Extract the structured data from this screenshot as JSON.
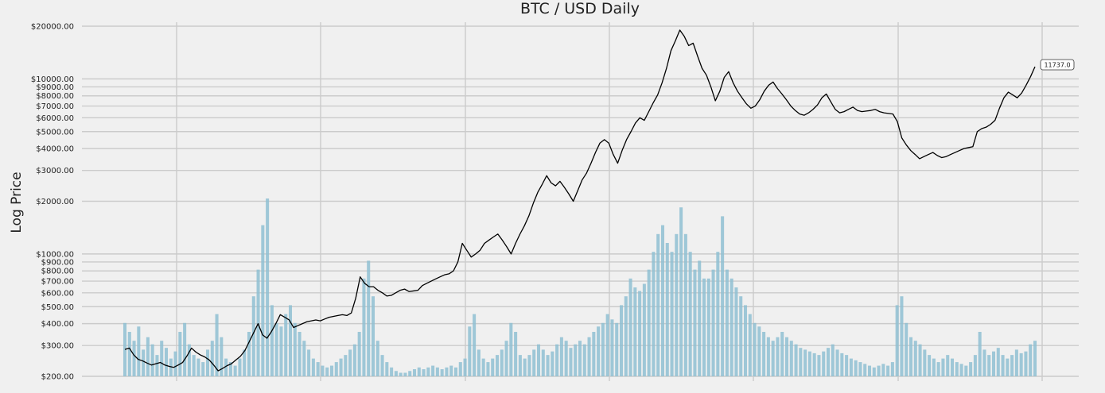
{
  "chart_data": {
    "type": "line",
    "title": "BTC / USD Daily",
    "ylabel": "Log Price",
    "xlabel": "",
    "y_scale": "log",
    "ylim": [
      200,
      20000
    ],
    "grid": true,
    "y_tick_values": [
      20000,
      10000,
      9000,
      8000,
      7000,
      6000,
      5000,
      4000,
      3000,
      2000,
      1000,
      900,
      800,
      700,
      600,
      500,
      400,
      300,
      200
    ],
    "y_tick_labels": [
      "$20000.00",
      "$10000.00",
      "$9000.00",
      "$8000.00",
      "$7000.00",
      "$6000.00",
      "$5000.00",
      "$4000.00",
      "$3000.00",
      "$2000.00",
      "$1000.00",
      "$900.00",
      "$800.00",
      "$700.00",
      "$600.00",
      "$500.00",
      "$400.00",
      "$300.00",
      "$200.00"
    ],
    "last_value_label": "11737.0",
    "series": [
      {
        "kind": "price-line",
        "color": "#000000",
        "values": [
          285,
          290,
          265,
          250,
          245,
          238,
          232,
          236,
          240,
          232,
          228,
          225,
          232,
          240,
          262,
          290,
          275,
          265,
          258,
          248,
          232,
          215,
          222,
          230,
          236,
          248,
          260,
          280,
          315,
          355,
          400,
          345,
          330,
          360,
          400,
          450,
          435,
          420,
          380,
          390,
          400,
          410,
          415,
          420,
          415,
          425,
          435,
          440,
          445,
          450,
          445,
          460,
          560,
          740,
          680,
          650,
          650,
          620,
          600,
          575,
          580,
          600,
          620,
          630,
          610,
          615,
          620,
          660,
          680,
          700,
          720,
          740,
          760,
          770,
          800,
          900,
          1150,
          1050,
          960,
          1000,
          1050,
          1150,
          1200,
          1250,
          1300,
          1200,
          1100,
          1000,
          1150,
          1300,
          1450,
          1650,
          1950,
          2250,
          2500,
          2800,
          2550,
          2450,
          2600,
          2400,
          2200,
          2000,
          2300,
          2650,
          2900,
          3300,
          3800,
          4300,
          4500,
          4300,
          3700,
          3300,
          3900,
          4500,
          5000,
          5600,
          6000,
          5800,
          6500,
          7300,
          8100,
          9500,
          11500,
          14500,
          16500,
          19000,
          17500,
          15500,
          16000,
          13500,
          11500,
          10500,
          9000,
          7500,
          8500,
          10200,
          11000,
          9500,
          8500,
          7800,
          7200,
          6800,
          7000,
          7600,
          8500,
          9200,
          9600,
          8800,
          8200,
          7600,
          7000,
          6600,
          6300,
          6200,
          6400,
          6700,
          7100,
          7800,
          8200,
          7400,
          6700,
          6400,
          6500,
          6700,
          6900,
          6600,
          6500,
          6550,
          6600,
          6700,
          6500,
          6400,
          6350,
          6300,
          5700,
          4600,
          4200,
          3900,
          3700,
          3500,
          3600,
          3700,
          3800,
          3650,
          3550,
          3600,
          3700,
          3800,
          3900,
          4000,
          4050,
          4100,
          5000,
          5200,
          5300,
          5500,
          5800,
          6800,
          7800,
          8400,
          8100,
          7800,
          8300,
          9200,
          10300,
          11737
        ]
      },
      {
        "kind": "volume-bars",
        "color": "#8fbfd2",
        "relative_values": [
          0.3,
          0.25,
          0.2,
          0.28,
          0.15,
          0.22,
          0.18,
          0.12,
          0.2,
          0.16,
          0.1,
          0.14,
          0.25,
          0.3,
          0.18,
          0.12,
          0.1,
          0.08,
          0.15,
          0.2,
          0.35,
          0.22,
          0.1,
          0.08,
          0.06,
          0.1,
          0.15,
          0.25,
          0.45,
          0.6,
          0.85,
          1.0,
          0.4,
          0.3,
          0.28,
          0.35,
          0.4,
          0.3,
          0.25,
          0.2,
          0.15,
          0.1,
          0.08,
          0.06,
          0.05,
          0.06,
          0.08,
          0.1,
          0.12,
          0.15,
          0.18,
          0.25,
          0.55,
          0.65,
          0.45,
          0.2,
          0.12,
          0.08,
          0.05,
          0.03,
          0.02,
          0.02,
          0.03,
          0.04,
          0.05,
          0.04,
          0.05,
          0.06,
          0.05,
          0.04,
          0.05,
          0.06,
          0.05,
          0.08,
          0.1,
          0.28,
          0.35,
          0.15,
          0.1,
          0.08,
          0.1,
          0.12,
          0.15,
          0.2,
          0.3,
          0.25,
          0.12,
          0.1,
          0.12,
          0.15,
          0.18,
          0.15,
          0.12,
          0.14,
          0.18,
          0.22,
          0.2,
          0.16,
          0.18,
          0.2,
          0.18,
          0.22,
          0.25,
          0.28,
          0.3,
          0.35,
          0.32,
          0.3,
          0.4,
          0.45,
          0.55,
          0.5,
          0.48,
          0.52,
          0.6,
          0.7,
          0.8,
          0.85,
          0.75,
          0.7,
          0.8,
          0.95,
          0.8,
          0.7,
          0.6,
          0.65,
          0.55,
          0.55,
          0.6,
          0.7,
          0.9,
          0.6,
          0.55,
          0.5,
          0.45,
          0.4,
          0.35,
          0.3,
          0.28,
          0.25,
          0.22,
          0.2,
          0.22,
          0.25,
          0.22,
          0.2,
          0.18,
          0.16,
          0.15,
          0.14,
          0.13,
          0.12,
          0.14,
          0.16,
          0.18,
          0.15,
          0.13,
          0.12,
          0.1,
          0.09,
          0.08,
          0.07,
          0.06,
          0.05,
          0.06,
          0.07,
          0.06,
          0.08,
          0.4,
          0.45,
          0.3,
          0.22,
          0.2,
          0.18,
          0.15,
          0.12,
          0.1,
          0.08,
          0.1,
          0.12,
          0.1,
          0.08,
          0.07,
          0.06,
          0.08,
          0.12,
          0.25,
          0.15,
          0.12,
          0.14,
          0.16,
          0.12,
          0.1,
          0.12,
          0.15,
          0.13,
          0.14,
          0.18,
          0.2
        ]
      }
    ]
  }
}
